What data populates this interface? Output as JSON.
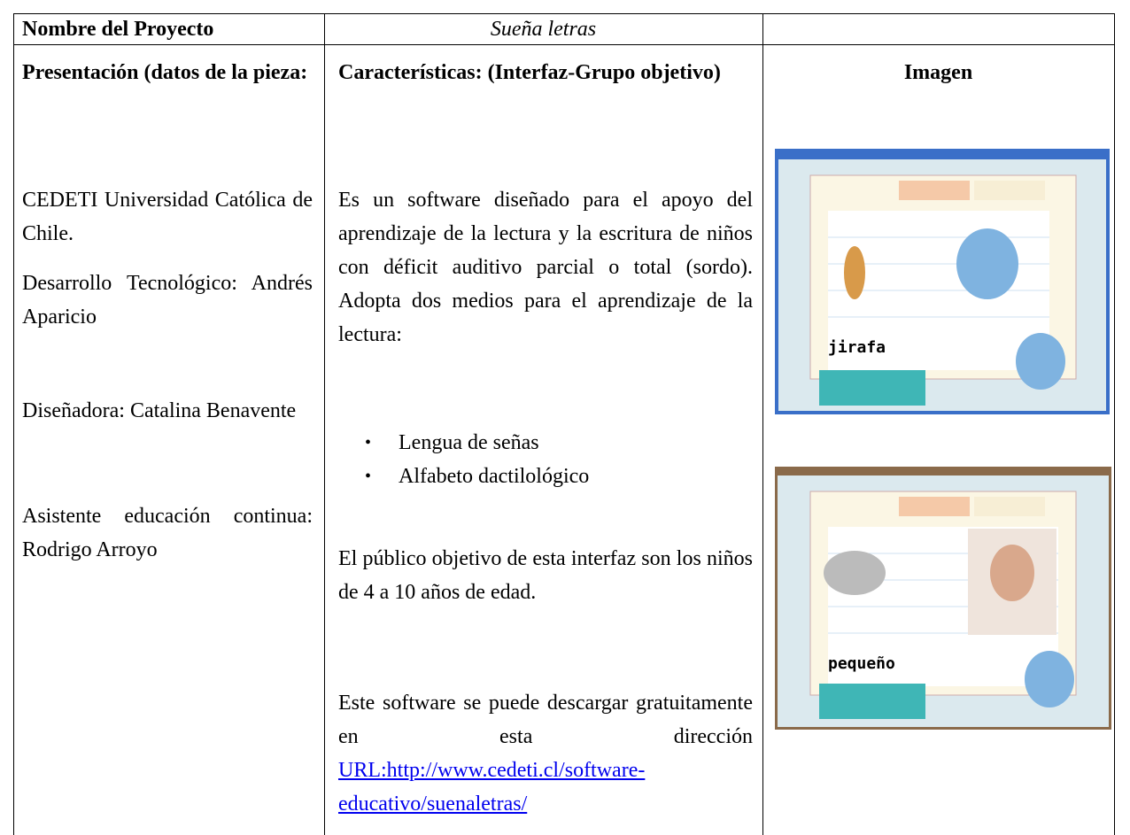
{
  "header": {
    "label": "Nombre del Proyecto",
    "value": "Sueña letras"
  },
  "columns": {
    "presentation": "Presentación (datos de la pieza:",
    "features": "Características: (Interfaz-Grupo objetivo)",
    "image": "Imagen"
  },
  "presentation": [
    "CEDETI Universidad Católica de Chile.",
    "Desarrollo Tecnológico: Andrés Aparicio",
    "Diseñadora: Catalina Benavente",
    "Asistente educación continua: Rodrigo Arroyo"
  ],
  "features": {
    "intro": "Es un software diseñado para el apoyo del aprendizaje de la lectura y la escritura de niños con déficit auditivo parcial o total (sordo). Adopta dos medios para el aprendizaje de la lectura:",
    "bullets": [
      "Lengua de señas",
      "Alfabeto dactilológico"
    ],
    "audience": "El público objetivo de esta interfaz son los niños de 4 a 10 años de edad.",
    "download": "Este software se puede descargar gratuitamente en esta dirección",
    "link": "URL:http://www.cedeti.cl/software-educativo/suenaletras/"
  },
  "images": [
    {
      "word": "jirafa"
    },
    {
      "word": "pequeño"
    }
  ]
}
